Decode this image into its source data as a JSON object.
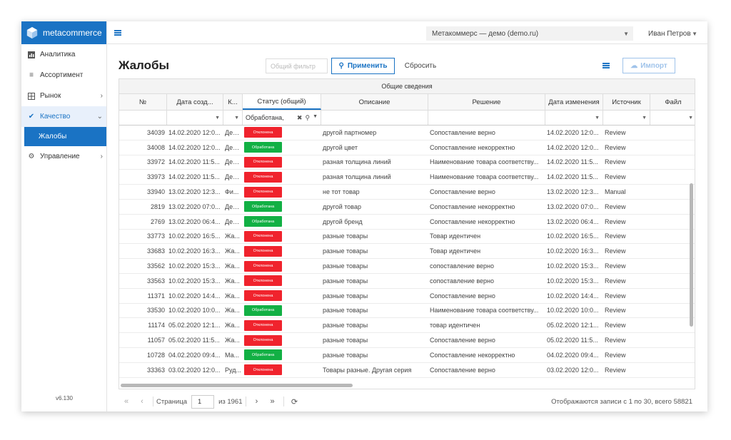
{
  "app": {
    "brand": "metacommerce",
    "version": "v6.130"
  },
  "sidebar": {
    "items": [
      {
        "label": "Аналитика",
        "icon": "bar-chart-icon"
      },
      {
        "label": "Ассортимент",
        "icon": "list-icon"
      },
      {
        "label": "Рынок",
        "icon": "grid-icon"
      },
      {
        "label": "Качество",
        "icon": "check-icon"
      },
      {
        "label": "Управление",
        "icon": "gear-icon"
      }
    ],
    "sub_item": "Жалобы"
  },
  "topbar": {
    "org": "Метакоммерс — демо (demo.ru)",
    "user": "Иван Петров"
  },
  "page": {
    "title": "Жалобы"
  },
  "toolbar": {
    "filter_placeholder": "Общий фильтр",
    "apply": "Применить",
    "reset": "Сбросить",
    "import": "Импорт"
  },
  "grid": {
    "group_header": "Общие сведения",
    "columns": [
      "№",
      "Дата созд...",
      "К...",
      "Статус (общий)",
      "Описание",
      "Решение",
      "Дата изменения",
      "Источник",
      "Файл"
    ],
    "status_filter": "Обработана,",
    "rows": [
      {
        "id": "34039",
        "date": "14.02.2020 12:0...",
        "k": "Ден...",
        "status": "Отклонена",
        "desc": "другой партномер",
        "decision": "Сопоставление верно",
        "changed": "14.02.2020 12:0...",
        "source": "Review"
      },
      {
        "id": "34008",
        "date": "14.02.2020 12:0...",
        "k": "Ден...",
        "status": "Обработана",
        "desc": "другой цвет",
        "decision": "Сопоставление некорректно",
        "changed": "14.02.2020 12:0...",
        "source": "Review"
      },
      {
        "id": "33972",
        "date": "14.02.2020 11:5...",
        "k": "Ден...",
        "status": "Отклонена",
        "desc": "разная толщина линий",
        "decision": "Наименование товара соответству...",
        "changed": "14.02.2020 11:5...",
        "source": "Review"
      },
      {
        "id": "33973",
        "date": "14.02.2020 11:5...",
        "k": "Ден...",
        "status": "Отклонена",
        "desc": "разная толщина линий",
        "decision": "Наименование товара соответству...",
        "changed": "14.02.2020 11:5...",
        "source": "Review"
      },
      {
        "id": "33940",
        "date": "13.02.2020 12:3...",
        "k": "Фи...",
        "status": "Отклонена",
        "desc": "не тот товар",
        "decision": "Сопоставление верно",
        "changed": "13.02.2020 12:3...",
        "source": "Manual"
      },
      {
        "id": "2819",
        "date": "13.02.2020 07:0...",
        "k": "Ден...",
        "status": "Обработана",
        "desc": "другой товар",
        "decision": "Сопоставление некорректно",
        "changed": "13.02.2020 07:0...",
        "source": "Review"
      },
      {
        "id": "2769",
        "date": "13.02.2020 06:4...",
        "k": "Ден...",
        "status": "Обработана",
        "desc": "другой бренд",
        "decision": "Сопоставление некорректно",
        "changed": "13.02.2020 06:4...",
        "source": "Review"
      },
      {
        "id": "33773",
        "date": "10.02.2020 16:5...",
        "k": "Жа...",
        "status": "Отклонена",
        "desc": "разные товары",
        "decision": "Товар идентичен",
        "changed": "10.02.2020 16:5...",
        "source": "Review"
      },
      {
        "id": "33683",
        "date": "10.02.2020 16:3...",
        "k": "Жа...",
        "status": "Отклонена",
        "desc": "разные товары",
        "decision": "Товар идентичен",
        "changed": "10.02.2020 16:3...",
        "source": "Review"
      },
      {
        "id": "33562",
        "date": "10.02.2020 15:3...",
        "k": "Жа...",
        "status": "Отклонена",
        "desc": "разные товары",
        "decision": "сопоставление верно",
        "changed": "10.02.2020 15:3...",
        "source": "Review"
      },
      {
        "id": "33563",
        "date": "10.02.2020 15:3...",
        "k": "Жа...",
        "status": "Отклонена",
        "desc": "разные товары",
        "decision": "сопоставление верно",
        "changed": "10.02.2020 15:3...",
        "source": "Review"
      },
      {
        "id": "11371",
        "date": "10.02.2020 14:4...",
        "k": "Жа...",
        "status": "Отклонена",
        "desc": "разные товары",
        "decision": "Сопоставление верно",
        "changed": "10.02.2020 14:4...",
        "source": "Review"
      },
      {
        "id": "33530",
        "date": "10.02.2020 10:0...",
        "k": "Жа...",
        "status": "Обработана",
        "desc": "разные товары",
        "decision": "Наименование товара соответству...",
        "changed": "10.02.2020 10:0...",
        "source": "Review"
      },
      {
        "id": "11174",
        "date": "05.02.2020 12:1...",
        "k": "Жа...",
        "status": "Отклонена",
        "desc": "разные товары",
        "decision": "товар идентичен",
        "changed": "05.02.2020 12:1...",
        "source": "Review"
      },
      {
        "id": "11057",
        "date": "05.02.2020 11:5...",
        "k": "Жа...",
        "status": "Отклонена",
        "desc": "разные товары",
        "decision": "Сопоставление верно",
        "changed": "05.02.2020 11:5...",
        "source": "Review"
      },
      {
        "id": "10728",
        "date": "04.02.2020 09:4...",
        "k": "Ма...",
        "status": "Обработана",
        "desc": "разные товары",
        "decision": "Сопоставление некорректно",
        "changed": "04.02.2020 09:4...",
        "source": "Review"
      },
      {
        "id": "33363",
        "date": "03.02.2020 12:0...",
        "k": "Руд...",
        "status": "Отклонена",
        "desc": "Товары разные. Другая серия",
        "decision": "Сопоставление верно",
        "changed": "03.02.2020 12:0...",
        "source": "Review"
      }
    ]
  },
  "pager": {
    "page_label": "Страница",
    "page": "1",
    "of": "из 1961",
    "info": "Отображаются записи с 1 по 30, всего 58821"
  },
  "colors": {
    "accent": "#1a73c4",
    "rejected": "#f0232d",
    "processed": "#12b044"
  }
}
